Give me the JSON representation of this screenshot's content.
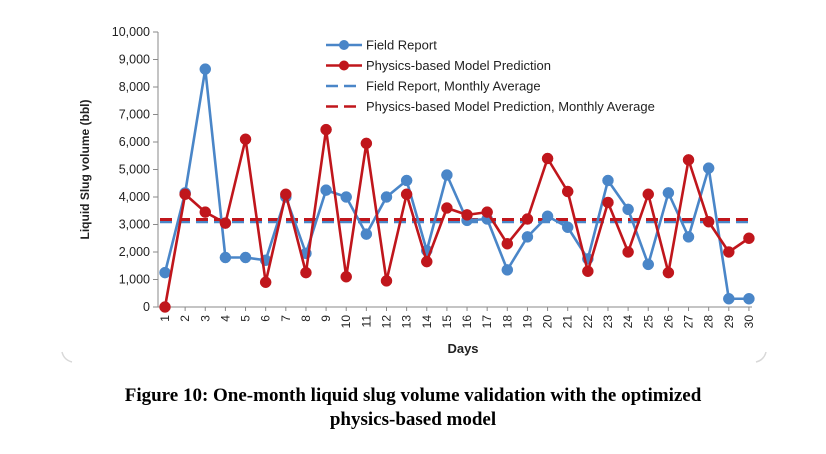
{
  "figure": {
    "caption_line1": "Figure 10: One-month liquid slug volume validation with the optimized",
    "caption_line2": "physics-based model"
  },
  "chart_data": {
    "type": "line",
    "xlabel": "Days",
    "ylabel": "Liquid Slug volume (bbl)",
    "x": [
      1,
      2,
      3,
      4,
      5,
      6,
      7,
      8,
      9,
      10,
      11,
      12,
      13,
      14,
      15,
      16,
      17,
      18,
      19,
      20,
      21,
      22,
      23,
      24,
      25,
      26,
      27,
      28,
      29,
      30
    ],
    "x_tick_labels": [
      "1",
      "2",
      "3",
      "4",
      "5",
      "6",
      "7",
      "8",
      "9",
      "10",
      "11",
      "12",
      "13",
      "14",
      "15",
      "16",
      "17",
      "18",
      "19",
      "20",
      "21",
      "22",
      "23",
      "24",
      "25",
      "26",
      "27",
      "28",
      "29",
      "30"
    ],
    "ylim": [
      0,
      10000
    ],
    "y_ticks": [
      0,
      1000,
      2000,
      3000,
      4000,
      5000,
      6000,
      7000,
      8000,
      9000,
      10000
    ],
    "y_tick_labels": [
      "0",
      "1,000",
      "2,000",
      "3,000",
      "4,000",
      "5,000",
      "6,000",
      "7,000",
      "8,000",
      "9,000",
      "10,000"
    ],
    "grid": false,
    "legend_position": "top-center",
    "series": [
      {
        "name": "Field Report",
        "color": "#4a86c8",
        "marker": "circle",
        "values": [
          1250,
          4150,
          8650,
          1800,
          1800,
          1700,
          4000,
          1950,
          4250,
          4000,
          2650,
          4000,
          4600,
          2050,
          4800,
          3150,
          3200,
          1350,
          2550,
          3300,
          2900,
          1750,
          4600,
          3550,
          1550,
          4150,
          2550,
          5050,
          300,
          300
        ]
      },
      {
        "name": "Physics-based Model Prediction",
        "color": "#c0161c",
        "marker": "circle",
        "values": [
          0,
          4100,
          3450,
          3050,
          6100,
          900,
          4100,
          1250,
          6450,
          1100,
          5950,
          950,
          4100,
          1650,
          3600,
          3350,
          3450,
          2300,
          3200,
          5400,
          4200,
          1300,
          3800,
          2000,
          4100,
          1250,
          5350,
          3100,
          2000,
          2500
        ]
      },
      {
        "name": "Field Report, Monthly Average",
        "color": "#4a86c8",
        "dashed": true,
        "value": 3100
      },
      {
        "name": "Physics-based Model Prediction, Monthly Average",
        "color": "#c0161c",
        "dashed": true,
        "value": 3180
      }
    ]
  }
}
